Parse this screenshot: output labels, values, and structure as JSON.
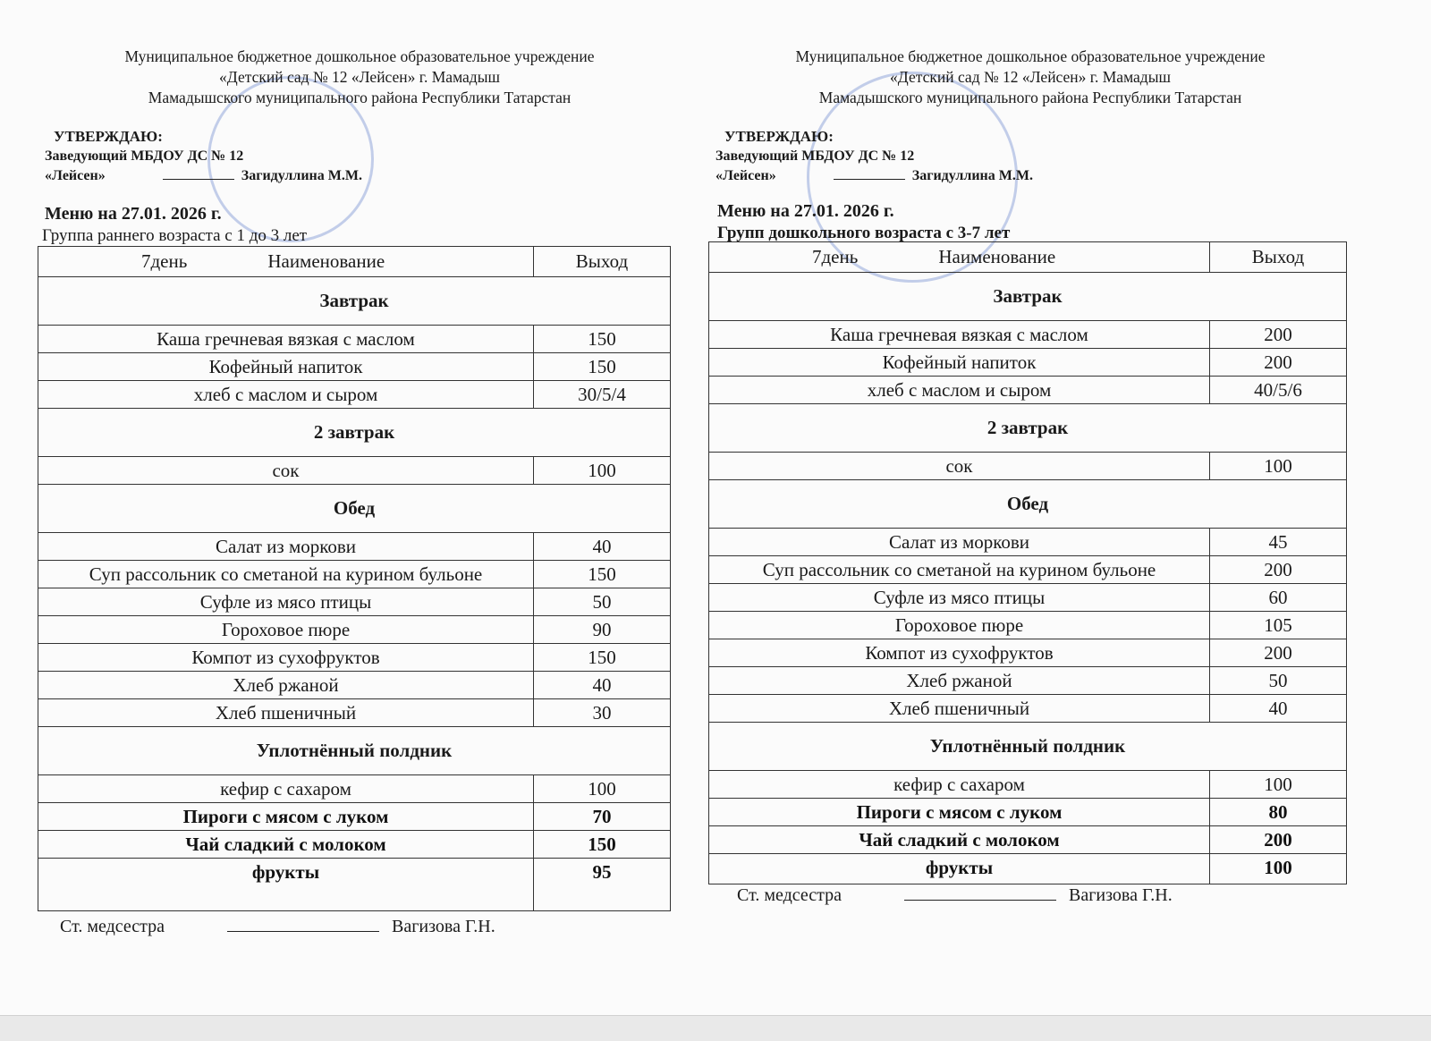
{
  "panels": {
    "left": {
      "org": [
        "Муниципальное бюджетное дошкольное образовательное учреждение",
        "«Детский сад № 12 «Лейсен» г. Мамадыш",
        "Мамадышского муниципального района Республики Татарстан"
      ],
      "approve": {
        "title": "УТВЕРЖДАЮ:",
        "position": "Заведующий МБДОУ ДС № 12",
        "org_name": "«Лейсен»",
        "person": "Загидуллина М.М."
      },
      "menu_title": "Меню на 27.01. 2026 г.",
      "group": "Группа раннего возраста  с 1 до 3 лет",
      "headers": {
        "day": "7день",
        "name": "Наименование",
        "output": "Выход"
      },
      "rows": [
        {
          "type": "section",
          "name": "Завтрак"
        },
        {
          "type": "item",
          "name": "Каша гречневая вязкая с маслом",
          "value": "150"
        },
        {
          "type": "item",
          "name": "Кофейный напиток",
          "value": "150"
        },
        {
          "type": "item",
          "name": "хлеб с маслом и сыром",
          "value": "30/5/4"
        },
        {
          "type": "section",
          "name": "2 завтрак"
        },
        {
          "type": "item",
          "name": "сок",
          "value": "100"
        },
        {
          "type": "section",
          "name": "Обед"
        },
        {
          "type": "item",
          "name": "Салат из моркови",
          "value": "40"
        },
        {
          "type": "item",
          "name": "Суп рассольник со сметаной на курином бульоне",
          "value": "150"
        },
        {
          "type": "item",
          "name": "Суфле из мясо птицы",
          "value": "50"
        },
        {
          "type": "item",
          "name": "Гороховое  пюре",
          "value": "90"
        },
        {
          "type": "item",
          "name": "Компот из сухофруктов",
          "value": "150"
        },
        {
          "type": "item",
          "name": "Хлеб ржаной",
          "value": "40"
        },
        {
          "type": "item",
          "name": "Хлеб пшеничный",
          "value": "30"
        },
        {
          "type": "section",
          "name": "Уплотнённый полдник"
        },
        {
          "type": "item",
          "name": "кефир с сахаром",
          "value": "100"
        },
        {
          "type": "item",
          "name": "Пироги с мясом с луком",
          "value": "70"
        },
        {
          "type": "item",
          "name": "Чай сладкий с молоком",
          "value": "150"
        },
        {
          "type": "item",
          "name": "фрукты",
          "value": "95"
        }
      ],
      "nurse": {
        "role": "Ст. медсестра",
        "person": "Вагизова Г.Н."
      }
    },
    "right": {
      "org": [
        "Муниципальное бюджетное дошкольное образовательное учреждение",
        "«Детский сад № 12 «Лейсен» г. Мамадыш",
        "Мамадышского муниципального района Республики Татарстан"
      ],
      "approve": {
        "title": "УТВЕРЖДАЮ:",
        "position": "Заведующий МБДОУ ДС № 12",
        "org_name": "«Лейсен»",
        "person": "Загидуллина М.М."
      },
      "menu_title": "Меню на  27.01. 2026 г.",
      "group": "Групп дошкольного возраста с 3-7 лет",
      "headers": {
        "day": "7день",
        "name": "Наименование",
        "output": "Выход"
      },
      "rows": [
        {
          "type": "section",
          "name": "Завтрак"
        },
        {
          "type": "item",
          "name": "Каша гречневая вязкая с маслом",
          "value": "200"
        },
        {
          "type": "item",
          "name": "Кофейный напиток",
          "value": "200"
        },
        {
          "type": "item",
          "name": "хлеб с маслом и сыром",
          "value": "40/5/6"
        },
        {
          "type": "section",
          "name": "2 завтрак"
        },
        {
          "type": "item",
          "name": "сок",
          "value": "100"
        },
        {
          "type": "section",
          "name": "Обед"
        },
        {
          "type": "item",
          "name": "Салат из моркови",
          "value": "45"
        },
        {
          "type": "item",
          "name": "Суп рассольник со сметаной на курином бульоне",
          "value": "200"
        },
        {
          "type": "item",
          "name": "Суфле из мясо птицы",
          "value": "60"
        },
        {
          "type": "item",
          "name": "Гороховое  пюре",
          "value": "105"
        },
        {
          "type": "item",
          "name": "Компот из сухофруктов",
          "value": "200"
        },
        {
          "type": "item",
          "name": "Хлеб ржаной",
          "value": "50"
        },
        {
          "type": "item",
          "name": "Хлеб пшеничный",
          "value": "40"
        },
        {
          "type": "section",
          "name": "Уплотнённый полдник"
        },
        {
          "type": "item",
          "name": "кефир с сахаром",
          "value": "100"
        },
        {
          "type": "item",
          "name": "Пироги с мясом с луком",
          "value": "80"
        },
        {
          "type": "item",
          "name": "Чай сладкий с молоком",
          "value": "200"
        },
        {
          "type": "item",
          "name": "фрукты",
          "value": "100"
        }
      ],
      "nurse": {
        "role": "Ст. медсестра",
        "person": "Вагизова Г.Н."
      }
    }
  }
}
